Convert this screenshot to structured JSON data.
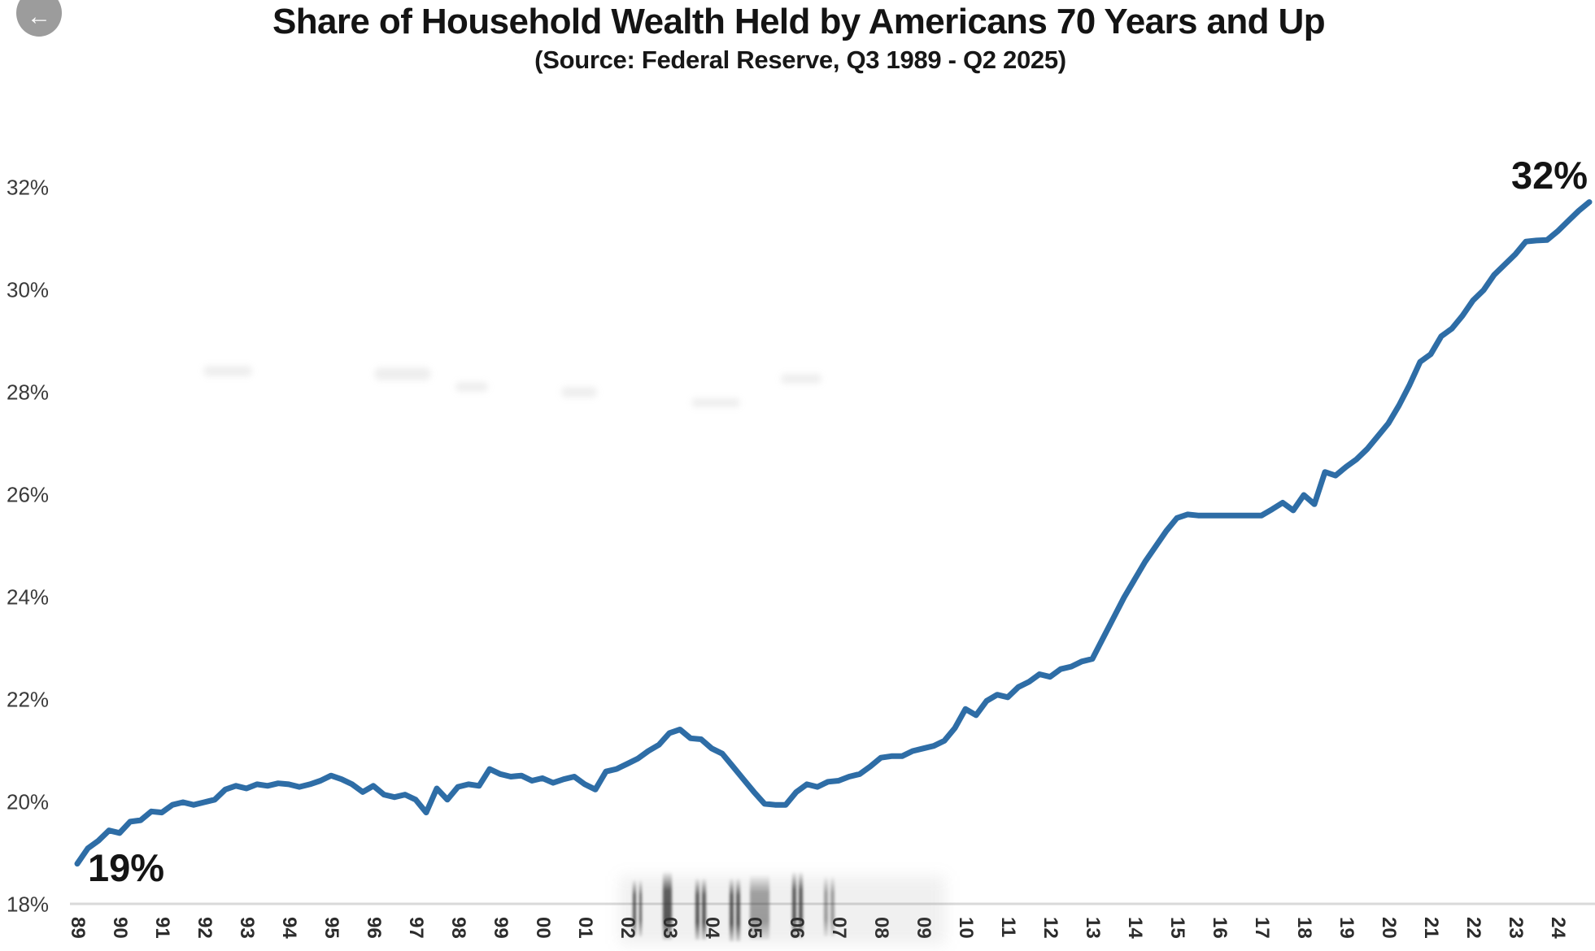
{
  "header": {
    "back_button_icon": "arrow-left",
    "title": "Share of Household Wealth Held by Americans 70 Years and Up",
    "subtitle": "(Source: Federal Reserve, Q3 1989 - Q2 2025)"
  },
  "chart_data": {
    "type": "line",
    "title": "Share of Household Wealth Held by Americans 70 Years and Up",
    "subtitle": "(Source: Federal Reserve, Q3 1989 - Q2 2025)",
    "frequency": "quarterly",
    "start_period": "1989-Q3",
    "end_period": "2025-Q2",
    "grid": "bottom-baseline-only",
    "legend": "none",
    "ylim": [
      18,
      32.8
    ],
    "y_axis": {
      "tick_labels": [
        "18%",
        "20%",
        "22%",
        "24%",
        "26%",
        "28%",
        "30%",
        "32%"
      ],
      "tick_values": [
        18,
        20,
        22,
        24,
        26,
        28,
        30,
        32
      ]
    },
    "x_axis": {
      "tick_labels": [
        "89",
        "90",
        "91",
        "92",
        "93",
        "94",
        "95",
        "96",
        "97",
        "98",
        "99",
        "00",
        "01",
        "02",
        "03",
        "04",
        "05",
        "06",
        "07",
        "08",
        "09",
        "10",
        "11",
        "12",
        "13",
        "14",
        "15",
        "16",
        "17",
        "18",
        "19",
        "20",
        "21",
        "22",
        "23",
        "24"
      ],
      "label_rotation_deg": 90
    },
    "series": [
      {
        "name": "Share of household wealth held by Americans 70 years and up",
        "color": "#2E6DA6",
        "values": [
          18.8,
          19.1,
          19.25,
          19.45,
          19.4,
          19.62,
          19.65,
          19.82,
          19.8,
          19.95,
          20.0,
          19.95,
          20.0,
          20.05,
          20.25,
          20.32,
          20.27,
          20.35,
          20.32,
          20.37,
          20.35,
          20.3,
          20.35,
          20.42,
          20.52,
          20.45,
          20.35,
          20.2,
          20.32,
          20.15,
          20.1,
          20.15,
          20.05,
          19.8,
          20.27,
          20.05,
          20.3,
          20.35,
          20.32,
          20.65,
          20.55,
          20.5,
          20.52,
          20.42,
          20.47,
          20.38,
          20.45,
          20.5,
          20.35,
          20.25,
          20.6,
          20.65,
          20.75,
          20.85,
          21.0,
          21.12,
          21.35,
          21.42,
          21.25,
          21.23,
          21.05,
          20.95,
          20.7,
          20.45,
          20.2,
          19.97,
          19.95,
          19.95,
          20.2,
          20.35,
          20.3,
          20.4,
          20.42,
          20.5,
          20.55,
          20.7,
          20.87,
          20.9,
          20.9,
          21.0,
          21.05,
          21.1,
          21.2,
          21.45,
          21.82,
          21.7,
          21.98,
          22.1,
          22.05,
          22.25,
          22.35,
          22.5,
          22.45,
          22.6,
          22.65,
          22.75,
          22.8,
          23.2,
          23.6,
          24.0,
          24.35,
          24.7,
          25.0,
          25.3,
          25.55,
          25.62,
          25.6,
          25.6,
          25.6,
          25.6,
          25.6,
          25.6,
          25.6,
          25.72,
          25.85,
          25.7,
          26.0,
          25.82,
          26.45,
          26.38,
          26.55,
          26.7,
          26.9,
          27.15,
          27.4,
          27.75,
          28.15,
          28.6,
          28.75,
          29.1,
          29.25,
          29.5,
          29.8,
          30.0,
          30.3,
          30.5,
          30.7,
          30.95,
          30.97,
          30.98,
          31.15,
          31.35,
          31.55,
          31.72
        ]
      }
    ],
    "annotations": [
      {
        "text": "19%",
        "position": "start-of-line"
      },
      {
        "text": "32%",
        "position": "end-of-line"
      }
    ],
    "baseline_color": "#d9d9d9"
  }
}
